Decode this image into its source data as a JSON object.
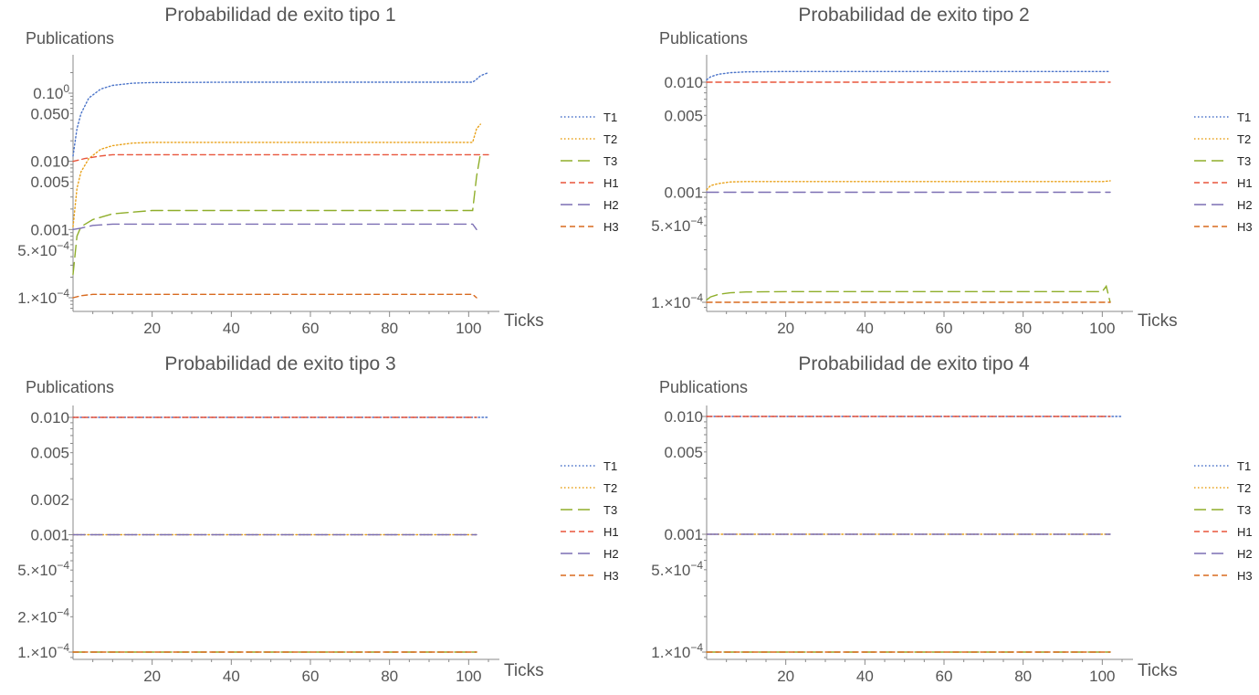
{
  "chart_data": [
    {
      "type": "line",
      "title": "Probabilidad de exito tipo 1",
      "ylabel": "Publications",
      "xlabel": "Ticks",
      "y_scale": "log",
      "xlim": [
        0,
        105
      ],
      "ylim": [
        7e-05,
        0.25
      ],
      "x_ticks": [
        20,
        40,
        60,
        80,
        100
      ],
      "y_ticks": [
        {
          "value": 0.1,
          "label": "0.100"
        },
        {
          "value": 0.05,
          "label": "0.050"
        },
        {
          "value": 0.01,
          "label": "0.010"
        },
        {
          "value": 0.005,
          "label": "0.005"
        },
        {
          "value": 0.001,
          "label": "0.001"
        },
        {
          "value": 0.0005,
          "label": "5.×10−4"
        },
        {
          "value": 0.0001,
          "label": "1.×10−4"
        }
      ],
      "series": [
        {
          "name": "T1",
          "points": [
            [
              0,
              0.012
            ],
            [
              1,
              0.03
            ],
            [
              2,
              0.05
            ],
            [
              4,
              0.085
            ],
            [
              7,
              0.115
            ],
            [
              10,
              0.13
            ],
            [
              15,
              0.14
            ],
            [
              20,
              0.143
            ],
            [
              40,
              0.145
            ],
            [
              60,
              0.145
            ],
            [
              80,
              0.145
            ],
            [
              101,
              0.145
            ],
            [
              102,
              0.16
            ],
            [
              103,
              0.18
            ],
            [
              105,
              0.2
            ]
          ]
        },
        {
          "name": "T2",
          "points": [
            [
              0,
              0.0011
            ],
            [
              1,
              0.004
            ],
            [
              2,
              0.007
            ],
            [
              4,
              0.011
            ],
            [
              7,
              0.015
            ],
            [
              10,
              0.017
            ],
            [
              15,
              0.0185
            ],
            [
              20,
              0.019
            ],
            [
              40,
              0.019
            ],
            [
              60,
              0.019
            ],
            [
              80,
              0.019
            ],
            [
              101,
              0.019
            ],
            [
              102,
              0.03
            ],
            [
              103,
              0.035
            ]
          ]
        },
        {
          "name": "T3",
          "points": [
            [
              0,
              0.00022
            ],
            [
              1,
              0.0008
            ],
            [
              2,
              0.0011
            ],
            [
              5,
              0.0014
            ],
            [
              10,
              0.0017
            ],
            [
              15,
              0.0018
            ],
            [
              20,
              0.0019
            ],
            [
              40,
              0.0019
            ],
            [
              60,
              0.0019
            ],
            [
              80,
              0.0019
            ],
            [
              101,
              0.0019
            ],
            [
              102,
              0.006
            ],
            [
              103,
              0.013
            ]
          ]
        },
        {
          "name": "H1",
          "points": [
            [
              0,
              0.01
            ],
            [
              3,
              0.011
            ],
            [
              7,
              0.012
            ],
            [
              10,
              0.0125
            ],
            [
              20,
              0.0125
            ],
            [
              40,
              0.0125
            ],
            [
              60,
              0.0125
            ],
            [
              80,
              0.0125
            ],
            [
              100,
              0.0125
            ],
            [
              105,
              0.0125
            ]
          ]
        },
        {
          "name": "H2",
          "points": [
            [
              0,
              0.001
            ],
            [
              2,
              0.00105
            ],
            [
              5,
              0.00115
            ],
            [
              10,
              0.0012
            ],
            [
              20,
              0.0012
            ],
            [
              40,
              0.0012
            ],
            [
              60,
              0.0012
            ],
            [
              80,
              0.0012
            ],
            [
              101,
              0.0012
            ],
            [
              102,
              0.001
            ]
          ]
        },
        {
          "name": "H3",
          "points": [
            [
              0,
              0.0001
            ],
            [
              2,
              0.000107
            ],
            [
              5,
              0.000112
            ],
            [
              10,
              0.000112
            ],
            [
              40,
              0.000112
            ],
            [
              80,
              0.000112
            ],
            [
              101,
              0.000112
            ],
            [
              102,
              0.0001
            ]
          ]
        }
      ]
    },
    {
      "type": "line",
      "title": "Probabilidad de exito tipo 2",
      "ylabel": "Publications",
      "xlabel": "Ticks",
      "y_scale": "log",
      "xlim": [
        0,
        105
      ],
      "ylim": [
        8e-05,
        0.02
      ],
      "x_ticks": [
        20,
        40,
        60,
        80,
        100
      ],
      "y_ticks": [
        {
          "value": 0.01,
          "label": "0.010"
        },
        {
          "value": 0.005,
          "label": "0.005"
        },
        {
          "value": 0.001,
          "label": "0.001"
        },
        {
          "value": 0.0005,
          "label": "5.×10−4"
        },
        {
          "value": 0.0001,
          "label": "1.×10−4"
        }
      ],
      "series": [
        {
          "name": "T1",
          "points": [
            [
              0,
              0.0105
            ],
            [
              1,
              0.0112
            ],
            [
              3,
              0.0118
            ],
            [
              6,
              0.0122
            ],
            [
              10,
              0.0124
            ],
            [
              20,
              0.0125
            ],
            [
              60,
              0.0125
            ],
            [
              102,
              0.0125
            ]
          ]
        },
        {
          "name": "T2",
          "points": [
            [
              0,
              0.00105
            ],
            [
              1,
              0.00115
            ],
            [
              3,
              0.0012
            ],
            [
              6,
              0.00124
            ],
            [
              10,
              0.00125
            ],
            [
              20,
              0.00125
            ],
            [
              60,
              0.00125
            ],
            [
              100,
              0.00125
            ],
            [
              102,
              0.00127
            ]
          ]
        },
        {
          "name": "T3",
          "points": [
            [
              0,
              0.000105
            ],
            [
              1,
              0.000112
            ],
            [
              3,
              0.000118
            ],
            [
              6,
              0.000122
            ],
            [
              10,
              0.000124
            ],
            [
              20,
              0.000125
            ],
            [
              60,
              0.000125
            ],
            [
              100,
              0.000125
            ],
            [
              101,
              0.00014
            ],
            [
              102,
              0.0001
            ]
          ]
        },
        {
          "name": "H1",
          "points": [
            [
              0,
              0.01
            ],
            [
              102,
              0.01
            ]
          ]
        },
        {
          "name": "H2",
          "points": [
            [
              0,
              0.001
            ],
            [
              102,
              0.001
            ]
          ]
        },
        {
          "name": "H3",
          "points": [
            [
              0,
              0.0001
            ],
            [
              102,
              0.0001
            ]
          ]
        }
      ]
    },
    {
      "type": "line",
      "title": "Probabilidad de exito tipo 3",
      "ylabel": "Publications",
      "xlabel": "Ticks",
      "y_scale": "log",
      "xlim": [
        0,
        105
      ],
      "ylim": [
        8e-05,
        0.013
      ],
      "x_ticks": [
        20,
        40,
        60,
        80,
        100
      ],
      "y_ticks": [
        {
          "value": 0.01,
          "label": "0.010"
        },
        {
          "value": 0.005,
          "label": "0.005"
        },
        {
          "value": 0.002,
          "label": "0.002"
        },
        {
          "value": 0.001,
          "label": "0.001"
        },
        {
          "value": 0.0005,
          "label": "5.×10−4"
        },
        {
          "value": 0.0002,
          "label": "2.×10−4"
        },
        {
          "value": 0.0001,
          "label": "1.×10−4"
        }
      ],
      "series": [
        {
          "name": "T1",
          "points": [
            [
              0,
              0.01
            ],
            [
              105,
              0.01
            ]
          ]
        },
        {
          "name": "T2",
          "points": [
            [
              0,
              0.001
            ],
            [
              102,
              0.001
            ]
          ]
        },
        {
          "name": "T3",
          "points": [
            [
              0,
              0.0001
            ],
            [
              102,
              0.0001
            ]
          ]
        },
        {
          "name": "H1",
          "points": [
            [
              0,
              0.01
            ],
            [
              102,
              0.01
            ]
          ]
        },
        {
          "name": "H2",
          "points": [
            [
              0,
              0.001
            ],
            [
              102,
              0.001
            ]
          ]
        },
        {
          "name": "H3",
          "points": [
            [
              0,
              0.0001
            ],
            [
              102,
              0.0001
            ]
          ]
        }
      ]
    },
    {
      "type": "line",
      "title": "Probabilidad de exito tipo 4",
      "ylabel": "Publications",
      "xlabel": "Ticks",
      "y_scale": "log",
      "xlim": [
        0,
        105
      ],
      "ylim": [
        8e-05,
        0.013
      ],
      "x_ticks": [
        20,
        40,
        60,
        80,
        100
      ],
      "y_ticks": [
        {
          "value": 0.01,
          "label": "0.010"
        },
        {
          "value": 0.005,
          "label": "0.005"
        },
        {
          "value": 0.001,
          "label": "0.001"
        },
        {
          "value": 0.0005,
          "label": "5.×10−4"
        },
        {
          "value": 0.0001,
          "label": "1.×10−4"
        }
      ],
      "series": [
        {
          "name": "T1",
          "points": [
            [
              0,
              0.01
            ],
            [
              105,
              0.01
            ]
          ]
        },
        {
          "name": "T2",
          "points": [
            [
              0,
              0.001
            ],
            [
              102,
              0.001
            ]
          ]
        },
        {
          "name": "T3",
          "points": [
            [
              0,
              0.0001
            ],
            [
              102,
              0.0001
            ]
          ]
        },
        {
          "name": "H1",
          "points": [
            [
              0,
              0.01
            ],
            [
              102,
              0.01
            ]
          ]
        },
        {
          "name": "H2",
          "points": [
            [
              0,
              0.001
            ],
            [
              102,
              0.001
            ]
          ]
        },
        {
          "name": "H3",
          "points": [
            [
              0,
              0.0001
            ],
            [
              102,
              0.0001
            ]
          ]
        }
      ]
    }
  ],
  "series_styles": [
    {
      "name": "T1",
      "color": "#4a73c9",
      "dash": "1.5,2.5"
    },
    {
      "name": "T2",
      "color": "#e9a21b",
      "dash": "1.5,2.5"
    },
    {
      "name": "T3",
      "color": "#8fae2a",
      "dash": "13,6"
    },
    {
      "name": "H1",
      "color": "#e8553c",
      "dash": "6,4"
    },
    {
      "name": "H2",
      "color": "#7b6fb3",
      "dash": "13,6"
    },
    {
      "name": "H3",
      "color": "#d86a1f",
      "dash": "6,4"
    }
  ]
}
